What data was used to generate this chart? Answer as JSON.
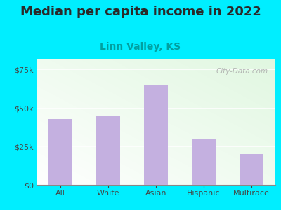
{
  "title": "Median per capita income in 2022",
  "subtitle": "Linn Valley, KS",
  "categories": [
    "All",
    "White",
    "Asian",
    "Hispanic",
    "Multirace"
  ],
  "values": [
    43000,
    45000,
    65000,
    30000,
    20000
  ],
  "bar_color": "#c4b0e0",
  "title_fontsize": 13,
  "subtitle_fontsize": 10,
  "subtitle_color": "#00a0a0",
  "title_color": "#2a2a2a",
  "background_outer": "#00eeff",
  "yticks": [
    0,
    25000,
    50000,
    75000
  ],
  "ylim": [
    0,
    82000
  ],
  "tick_color": "#444444",
  "watermark": "City-Data.com",
  "bar_width": 0.5
}
